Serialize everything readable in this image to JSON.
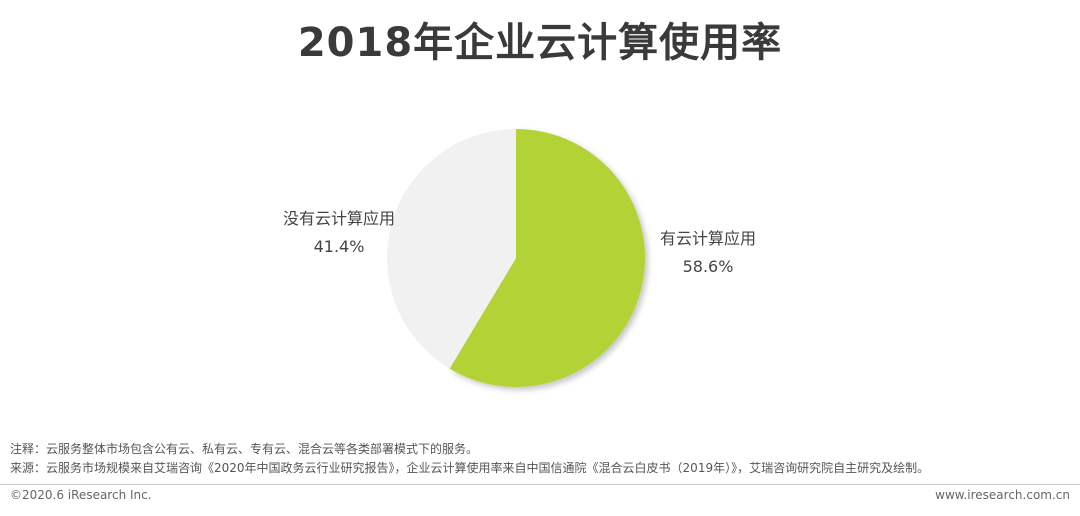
{
  "chart_data": {
    "type": "pie",
    "title": "2018年企业云计算使用率",
    "categories": [
      "有云计算应用",
      "没有云计算应用"
    ],
    "values": [
      58.6,
      41.4
    ],
    "value_labels": [
      "58.6%",
      "41.4%"
    ],
    "colors": [
      "#b2d235",
      "#f1f1f1"
    ]
  },
  "notes": {
    "note": "注释：云服务整体市场包含公有云、私有云、专有云、混合云等各类部署模式下的服务。",
    "source": "来源：云服务市场规模来自艾瑞咨询《2020年中国政务云行业研究报告》，企业云计算使用率来自中国信通院《混合云白皮书（2019年）》，艾瑞咨询研究院自主研究及绘制。"
  },
  "footer": {
    "copyright": "©2020.6 iResearch Inc.",
    "website": "www.iresearch.com.cn"
  }
}
